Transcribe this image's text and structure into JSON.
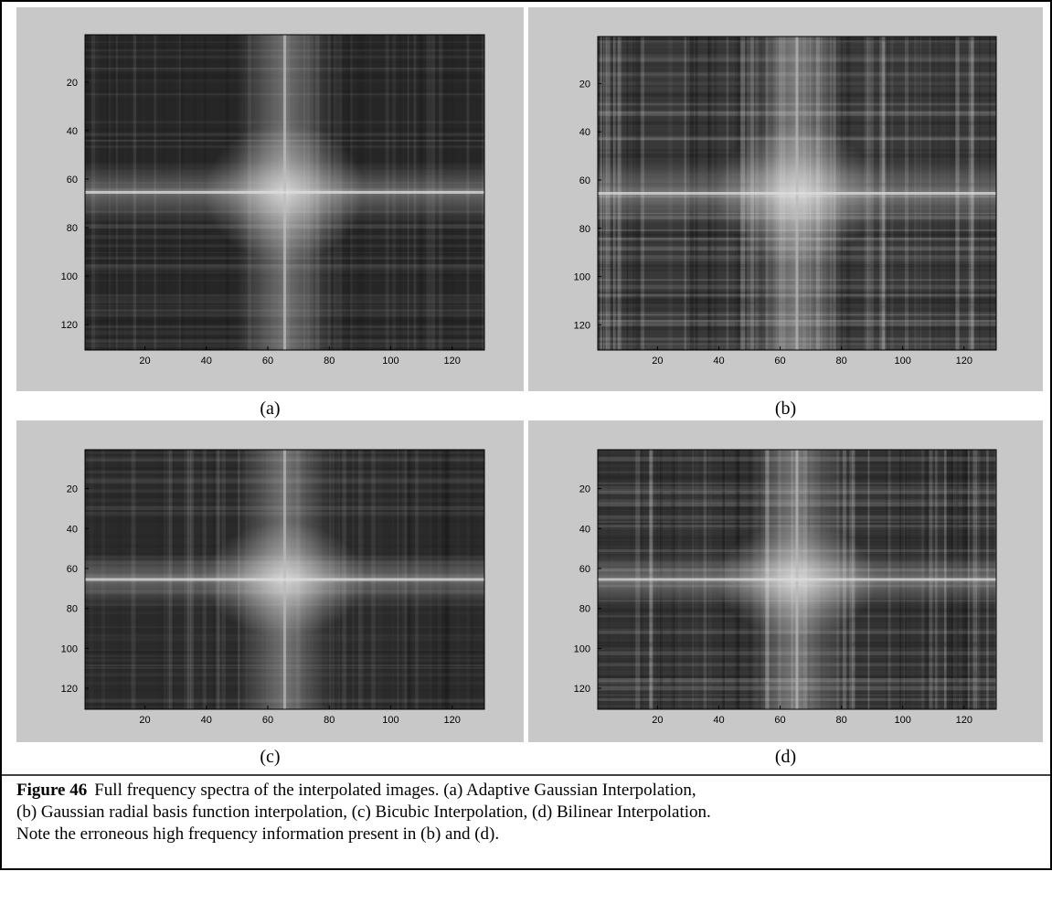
{
  "figure": {
    "panels": [
      {
        "label": "(a)",
        "xlim": [
          0.5,
          130.5
        ],
        "ylim": [
          0.5,
          130.5
        ],
        "xticks": [
          20,
          40,
          60,
          80,
          100,
          120
        ],
        "yticks": [
          20,
          40,
          60,
          80,
          100,
          120
        ]
      },
      {
        "label": "(b)",
        "xlim": [
          0.5,
          130.5
        ],
        "ylim": [
          0.5,
          130.5
        ],
        "xticks": [
          20,
          40,
          60,
          80,
          100,
          120
        ],
        "yticks": [
          20,
          40,
          60,
          80,
          100,
          120
        ]
      },
      {
        "label": "(c)",
        "xlim": [
          0.5,
          130.5
        ],
        "ylim": [
          0.5,
          130.5
        ],
        "xticks": [
          20,
          40,
          60,
          80,
          100,
          120
        ],
        "yticks": [
          20,
          40,
          60,
          80,
          100,
          120
        ]
      },
      {
        "label": "(d)",
        "xlim": [
          0.5,
          130.5
        ],
        "ylim": [
          0.5,
          130.5
        ],
        "xticks": [
          20,
          40,
          60,
          80,
          100,
          120
        ],
        "yticks": [
          20,
          40,
          60,
          80,
          100,
          120
        ]
      }
    ],
    "caption": {
      "label": "Figure 46",
      "lines": [
        "Full frequency spectra of the interpolated images. (a) Adaptive Gaussian Interpolation,",
        "(b) Gaussian radial basis function interpolation, (c) Bicubic Interpolation, (d) Bilinear Interpolation.",
        "Note the erroneous high frequency information present in (b) and (d)."
      ]
    }
  }
}
